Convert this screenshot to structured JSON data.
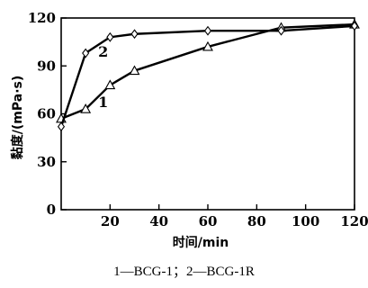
{
  "chart_data": {
    "type": "line",
    "xlabel": "时间/min",
    "ylabel": "黏度/(mPa·s)",
    "xlim": [
      0,
      120
    ],
    "ylim": [
      0,
      120
    ],
    "xticks": [
      "20",
      "40",
      "60",
      "80",
      "100",
      "120"
    ],
    "yticks": [
      "0",
      "30",
      "60",
      "90",
      "120"
    ],
    "grid": false,
    "series": [
      {
        "name": "1",
        "marker": "triangle",
        "x": [
          0,
          10,
          20,
          30,
          60,
          90,
          120
        ],
        "y": [
          57,
          63,
          78,
          87,
          102,
          114,
          116
        ]
      },
      {
        "name": "2",
        "marker": "diamond",
        "x": [
          0,
          10,
          20,
          30,
          60,
          90,
          120
        ],
        "y": [
          52,
          98,
          108,
          110,
          112,
          112,
          115
        ]
      }
    ]
  },
  "caption": "1—BCG-1；2—BCG-1R"
}
